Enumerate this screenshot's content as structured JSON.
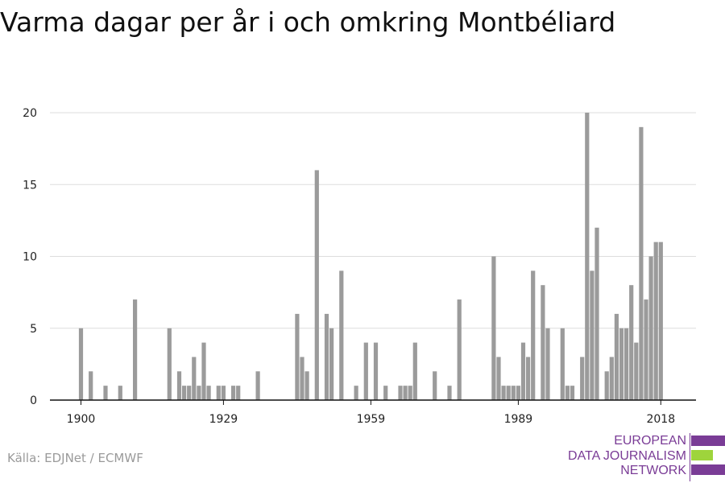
{
  "title": "Varma dagar per år i och omkring Montbéliard",
  "source": "Källa: EDJNet / ECMWF",
  "logo": {
    "lines": [
      "EUROPEAN",
      "DATA JOURNALISM",
      "NETWORK"
    ],
    "colors": {
      "text": "#7a3c96",
      "bar_purple": "#7a3c96",
      "bar_green": "#9ed43c"
    }
  },
  "chart_data": {
    "type": "bar",
    "title": "",
    "xlabel": "",
    "ylabel": "",
    "x_start": 1900,
    "x_end": 2021,
    "ylim": [
      0,
      20
    ],
    "yticks": [
      0,
      5,
      10,
      15,
      20
    ],
    "xticks": [
      1900,
      1929,
      1959,
      1989,
      2018
    ],
    "grid": true,
    "bar_color": "#9b9b9b",
    "x": [
      1900,
      1902,
      1905,
      1908,
      1911,
      1918,
      1920,
      1921,
      1922,
      1923,
      1924,
      1925,
      1926,
      1928,
      1929,
      1931,
      1932,
      1936,
      1944,
      1945,
      1946,
      1948,
      1950,
      1951,
      1953,
      1956,
      1958,
      1960,
      1962,
      1965,
      1966,
      1967,
      1968,
      1972,
      1975,
      1977,
      1984,
      1985,
      1986,
      1987,
      1988,
      1989,
      1990,
      1991,
      1992,
      1994,
      1995,
      1998,
      1999,
      2000,
      2002,
      2003,
      2004,
      2005,
      2007,
      2008,
      2009,
      2010,
      2011,
      2012,
      2013,
      2014,
      2015,
      2016,
      2017,
      2018
    ],
    "values": [
      5,
      2,
      1,
      1,
      7,
      5,
      2,
      1,
      1,
      3,
      1,
      4,
      1,
      1,
      1,
      1,
      1,
      2,
      6,
      3,
      2,
      16,
      6,
      5,
      9,
      1,
      4,
      4,
      1,
      1,
      1,
      1,
      4,
      2,
      1,
      7,
      10,
      3,
      1,
      1,
      1,
      1,
      4,
      3,
      9,
      8,
      5,
      5,
      1,
      1,
      3,
      20,
      9,
      12,
      2,
      3,
      6,
      5,
      5,
      8,
      4,
      19,
      7,
      10,
      11,
      11
    ]
  }
}
